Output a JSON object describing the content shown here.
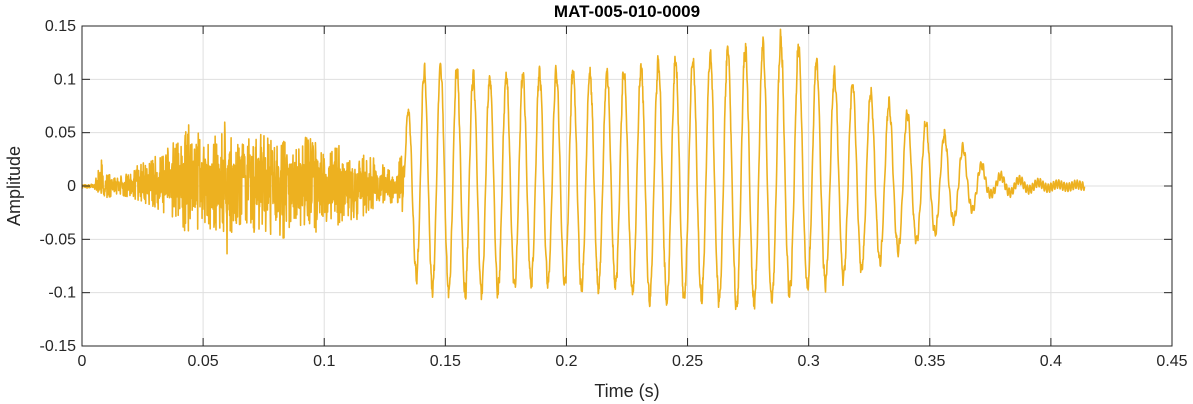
{
  "chart_data": {
    "type": "line",
    "title": "MAT-005-010-0009",
    "xlabel": "Time (s)",
    "ylabel": "Amplitude",
    "xlim": [
      0,
      0.45
    ],
    "ylim": [
      -0.15,
      0.15
    ],
    "xticks": [
      0,
      0.05,
      0.1,
      0.15,
      0.2,
      0.25,
      0.3,
      0.35,
      0.4,
      0.45
    ],
    "xtick_labels": [
      "0",
      "0.05",
      "0.1",
      "0.15",
      "0.2",
      "0.25",
      "0.3",
      "0.35",
      "0.4",
      "0.45"
    ],
    "yticks": [
      -0.15,
      -0.1,
      -0.05,
      0,
      0.05,
      0.1,
      0.15
    ],
    "ytick_labels": [
      "-0.15",
      "-0.1",
      "-0.05",
      "0",
      "0.05",
      "0.1",
      "0.15"
    ],
    "grid": true,
    "line_color": "#EDB120",
    "series": [
      {
        "name": "",
        "x": [
          0.0,
          0.005,
          0.008,
          0.01,
          0.015,
          0.02,
          0.03,
          0.04,
          0.043,
          0.05,
          0.055,
          0.06,
          0.065,
          0.07,
          0.075,
          0.08,
          0.085,
          0.09,
          0.095,
          0.1,
          0.105,
          0.11,
          0.115,
          0.12,
          0.125,
          0.13,
          0.132,
          0.134,
          0.14,
          0.15,
          0.16,
          0.17,
          0.18,
          0.19,
          0.2,
          0.21,
          0.22,
          0.23,
          0.24,
          0.25,
          0.26,
          0.27,
          0.28,
          0.29,
          0.3,
          0.31,
          0.32,
          0.33,
          0.34,
          0.35,
          0.36,
          0.37,
          0.375,
          0.38,
          0.39,
          0.4,
          0.41,
          0.414
        ],
        "upper": [
          0.001,
          0.002,
          0.026,
          0.012,
          0.008,
          0.015,
          0.03,
          0.045,
          0.062,
          0.045,
          0.052,
          0.064,
          0.04,
          0.046,
          0.05,
          0.04,
          0.045,
          0.05,
          0.045,
          0.04,
          0.04,
          0.035,
          0.03,
          0.028,
          0.02,
          0.01,
          0.04,
          0.07,
          0.115,
          0.12,
          0.11,
          0.11,
          0.11,
          0.115,
          0.115,
          0.11,
          0.115,
          0.118,
          0.122,
          0.125,
          0.13,
          0.135,
          0.14,
          0.145,
          0.13,
          0.112,
          0.1,
          0.085,
          0.075,
          0.06,
          0.045,
          0.025,
          0.012,
          0.01,
          0.005,
          0.002,
          0.002,
          0.0
        ],
        "lower": [
          -0.002,
          -0.003,
          -0.008,
          -0.012,
          -0.008,
          -0.012,
          -0.02,
          -0.035,
          -0.045,
          -0.045,
          -0.04,
          -0.066,
          -0.04,
          -0.045,
          -0.045,
          -0.075,
          -0.045,
          -0.04,
          -0.045,
          -0.04,
          -0.04,
          -0.035,
          -0.03,
          -0.025,
          -0.02,
          -0.015,
          -0.025,
          -0.07,
          -0.1,
          -0.105,
          -0.108,
          -0.105,
          -0.1,
          -0.095,
          -0.1,
          -0.103,
          -0.1,
          -0.11,
          -0.115,
          -0.11,
          -0.115,
          -0.12,
          -0.118,
          -0.11,
          -0.1,
          -0.095,
          -0.085,
          -0.075,
          -0.06,
          -0.05,
          -0.035,
          -0.02,
          -0.008,
          -0.008,
          -0.004,
          -0.002,
          -0.001,
          0.0
        ]
      }
    ]
  }
}
